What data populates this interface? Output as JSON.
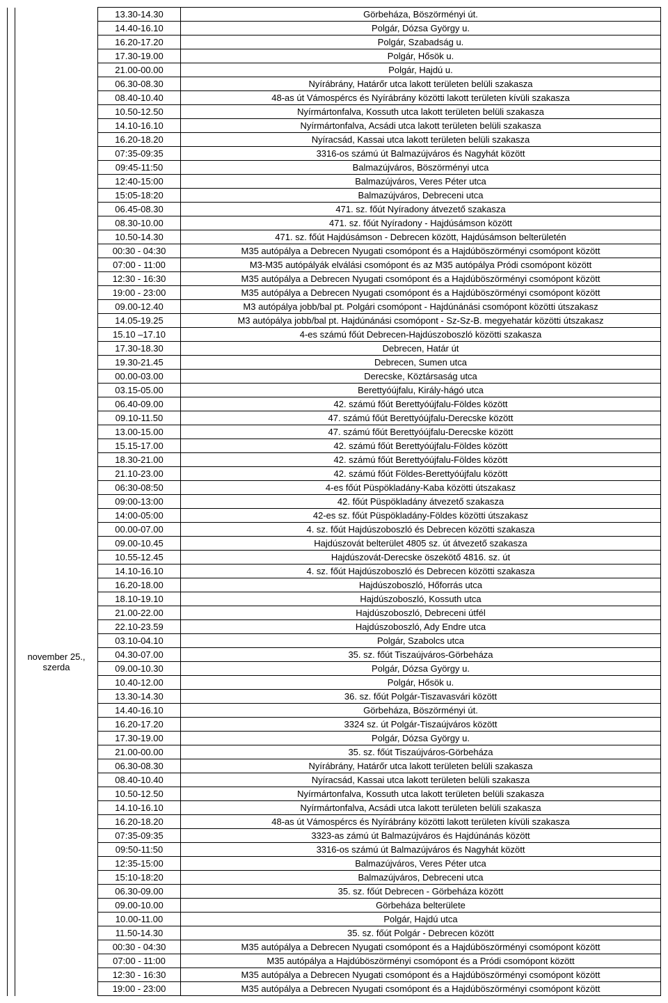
{
  "section1": {
    "date_label": "",
    "rows": [
      {
        "time": "13.30-14.30",
        "loc": "Görbeháza, Böszörményi út."
      },
      {
        "time": "14.40-16.10",
        "loc": "Polgár, Dózsa György u."
      },
      {
        "time": "16.20-17.20",
        "loc": "Polgár, Szabadság u."
      },
      {
        "time": "17.30-19.00",
        "loc": "Polgár, Hősök u."
      },
      {
        "time": "21.00-00.00",
        "loc": "Polgár, Hajdú u."
      },
      {
        "time": "06.30-08.30",
        "loc": "Nyírábrány, Határőr utca lakott területen belüli szakasza"
      },
      {
        "time": "08.40-10.40",
        "loc": "48-as út Vámospércs és Nyírábrány közötti lakott területen kívüli szakasza"
      },
      {
        "time": "10.50-12.50",
        "loc": "Nyírmártonfalva, Kossuth utca lakott területen belüli szakasza"
      },
      {
        "time": "14.10-16.10",
        "loc": "Nyírmártonfalva, Acsádi utca lakott területen belüli szakasza"
      },
      {
        "time": "16.20-18.20",
        "loc": "Nyíracsád, Kassai utca lakott területen belüli szakasza"
      },
      {
        "time": "07:35-09:35",
        "loc": "3316-os számú út Balmazújváros és Nagyhát között"
      },
      {
        "time": "09:45-11:50",
        "loc": "Balmazújváros, Böszörményi utca"
      },
      {
        "time": "12:40-15:00",
        "loc": "Balmazújváros, Veres Péter utca"
      },
      {
        "time": "15:05-18:20",
        "loc": "Balmazújváros, Debreceni utca"
      },
      {
        "time": "06.45-08.30",
        "loc": "471. sz. főút Nyíradony átvezető szakasza"
      },
      {
        "time": "08.30-10.00",
        "loc": "471. sz. főút Nyíradony - Hajdúsámson között"
      },
      {
        "time": "10.50-14.30",
        "loc": "471. sz. főút Hajdúsámson - Debrecen között, Hajdúsámson belterületén"
      },
      {
        "time": "00:30 - 04:30",
        "loc": "M35 autópálya a Debrecen Nyugati csomópont és a Hajdúböszörményi csomópont között"
      },
      {
        "time": "07:00 - 11:00",
        "loc": "M3-M35 autópályák elválási csomópont és az M35 autópálya Pródi csomópont között"
      },
      {
        "time": "12:30 - 16:30",
        "loc": "M35 autópálya a Debrecen Nyugati csomópont és a Hajdúböszörményi csomópont között"
      },
      {
        "time": "19:00 - 23:00",
        "loc": "M35 autópálya a Debrecen Nyugati csomópont és a Hajdúböszörményi csomópont között"
      },
      {
        "time": "09.00-12.40",
        "loc": "M3 autópálya jobb/bal pt. Polgári csomópont - Hajdúnánási csomópont közötti útszakasz"
      },
      {
        "time": "14.05-19.25",
        "loc": "M3 autópálya jobb/bal pt. Hajdúnánási csomópont - Sz-Sz-B. megyehatár közötti útszakasz"
      }
    ]
  },
  "section2": {
    "date_label": "november 25.,\nszerda",
    "rows": [
      {
        "time": "15.10 –17.10",
        "loc": "4-es számú főút Debrecen-Hajdúszoboszló közötti szakasza"
      },
      {
        "time": "17.30-18.30",
        "loc": "Debrecen, Határ út"
      },
      {
        "time": "19.30-21.45",
        "loc": "Debrecen, Sumen utca"
      },
      {
        "time": "00.00-03.00",
        "loc": "Derecske, Köztársaság utca"
      },
      {
        "time": "03.15-05.00",
        "loc": "Berettyóújfalu, Király-hágó utca"
      },
      {
        "time": "06.40-09.00",
        "loc": "42. számú főút Berettyóújfalu-Földes között"
      },
      {
        "time": "09.10-11.50",
        "loc": "47. számú főút Berettyóújfalu-Derecske között"
      },
      {
        "time": "13.00-15.00",
        "loc": "47. számú főút Berettyóújfalu-Derecske között"
      },
      {
        "time": "15.15-17.00",
        "loc": "42. számú főút Berettyóújfalu-Földes között"
      },
      {
        "time": "18.30-21.00",
        "loc": "42. számú főút Berettyóújfalu-Földes között"
      },
      {
        "time": "21.10-23.00",
        "loc": "42. számú főút Földes-Berettyóújfalu között"
      },
      {
        "time": "06:30-08:50",
        "loc": "4-es főút Püspökladány-Kaba közötti útszakasz"
      },
      {
        "time": "09:00-13:00",
        "loc": "42. főút Püspökladány átvezető szakasza"
      },
      {
        "time": "14:00-05:00",
        "loc": "42-es sz. főút Püspökladány-Földes közötti útszakasz"
      },
      {
        "time": "00.00-07.00",
        "loc": "4. sz. főút Hajdúszoboszló és Debrecen közötti szakasza"
      },
      {
        "time": "09.00-10.45",
        "loc": "Hajdúszovát belterület 4805 sz. út átvezető szakasza"
      },
      {
        "time": "10.55-12.45",
        "loc": "Hajdúszovát-Derecske öszekötő 4816. sz. út"
      },
      {
        "time": "14.10-16.10",
        "loc": "4. sz. főút Hajdúszoboszló és Debrecen közötti szakasza"
      },
      {
        "time": "16.20-18.00",
        "loc": "Hajdúszoboszló, Hőforrás utca"
      },
      {
        "time": "18.10-19.10",
        "loc": "Hajdúszoboszló, Kossuth utca"
      },
      {
        "time": "21.00-22.00",
        "loc": "Hajdúszoboszló, Debreceni útfél"
      },
      {
        "time": "22.10-23.59",
        "loc": "Hajdúszoboszló, Ady Endre utca"
      },
      {
        "time": "03.10-04.10",
        "loc": "Polgár, Szabolcs utca"
      },
      {
        "time": "04.30-07.00",
        "loc": "35. sz. főút Tiszaújváros-Görbeháza"
      },
      {
        "time": "09.00-10.30",
        "loc": "Polgár, Dózsa György u."
      },
      {
        "time": "10.40-12.00",
        "loc": "Polgár, Hősök u."
      },
      {
        "time": "13.30-14.30",
        "loc": "36. sz. főút Polgár-Tiszavasvári között"
      },
      {
        "time": "14.40-16.10",
        "loc": "Görbeháza, Böszörményi út."
      },
      {
        "time": "16.20-17.20",
        "loc": "3324 sz. út Polgár-Tiszaújváros között"
      },
      {
        "time": "17.30-19.00",
        "loc": "Polgár, Dózsa György u."
      },
      {
        "time": "21.00-00.00",
        "loc": "35. sz. főút Tiszaújváros-Görbeháza"
      },
      {
        "time": "06.30-08.30",
        "loc": "Nyírábrány, Határőr utca lakott területen belüli szakasza"
      },
      {
        "time": "08.40-10.40",
        "loc": "Nyíracsád, Kassai utca lakott területen belüli szakasza"
      },
      {
        "time": "10.50-12.50",
        "loc": "Nyírmártonfalva, Kossuth utca lakott területen belüli szakasza"
      },
      {
        "time": "14.10-16.10",
        "loc": "Nyírmártonfalva, Acsádi utca lakott területen belüli szakasza"
      },
      {
        "time": "16.20-18.20",
        "loc": "48-as út Vámospércs és Nyírábrány közötti lakott területen kívüli szakasza"
      },
      {
        "time": "07:35-09:35",
        "loc": "3323-as zámú út Balmazújváros és Hajdúnánás között"
      },
      {
        "time": "09:50-11:50",
        "loc": "3316-os számú út Balmazújváros és Nagyhát között"
      },
      {
        "time": "12:35-15:00",
        "loc": "Balmazújváros, Veres Péter utca"
      },
      {
        "time": "15:10-18:20",
        "loc": "Balmazújváros, Debreceni utca"
      },
      {
        "time": "06.30-09.00",
        "loc": "35. sz. főút Debrecen - Görbeháza között"
      },
      {
        "time": "09.00-10.00",
        "loc": "Görbeháza belterülete"
      },
      {
        "time": "10.00-11.00",
        "loc": "Polgár, Hajdú utca"
      },
      {
        "time": "11.50-14.30",
        "loc": "35. sz. főút Polgár - Debrecen között"
      },
      {
        "time": "00:30 - 04:30",
        "loc": "M35 autópálya a Debrecen Nyugati csomópont és a Hajdúböszörményi csomópont között"
      },
      {
        "time": "07:00 - 11:00",
        "loc": "M35 autópálya a Hajdúböszörményi csomópont és a Pródi csomópont között"
      },
      {
        "time": "12:30 - 16:30",
        "loc": "M35 autópálya a Debrecen Nyugati csomópont és a Hajdúböszörményi csomópont között"
      },
      {
        "time": "19:00 - 23:00",
        "loc": "M35 autópálya a Debrecen Nyugati csomópont és a Hajdúböszörményi csomópont között"
      }
    ]
  }
}
